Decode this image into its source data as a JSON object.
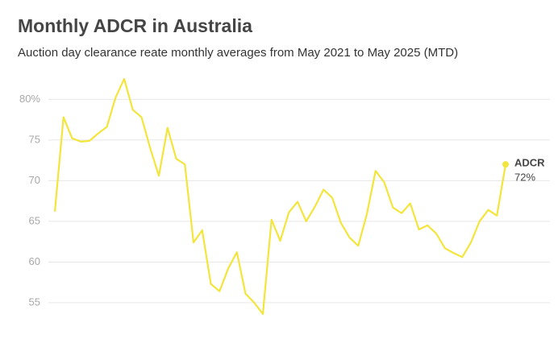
{
  "chart_data": {
    "type": "line",
    "title": "Monthly ADCR in Australia",
    "subtitle": "Auction day clearance reate monthly averages from May 2021 to May 2025 (MTD)",
    "categories": [
      null,
      null,
      null,
      null,
      null,
      null,
      null,
      null,
      null,
      null,
      null,
      null,
      null,
      null,
      null,
      null,
      null,
      null,
      null,
      null,
      null,
      null,
      null,
      null,
      null,
      null,
      null,
      null,
      null,
      null,
      null,
      null,
      null,
      null,
      null,
      null,
      null,
      null,
      null,
      null,
      null,
      null,
      null,
      null,
      null,
      null,
      null,
      null,
      null,
      null,
      null,
      null,
      null
    ],
    "series": [
      {
        "name": "ADCR",
        "color": "#f3e53b",
        "values": [
          66.2,
          77.8,
          75.2,
          74.8,
          74.9,
          75.8,
          76.6,
          80.2,
          82.5,
          78.7,
          77.8,
          74,
          70.6,
          76.5,
          72.7,
          72,
          62.4,
          63.9,
          57.3,
          56.4,
          59.2,
          61.2,
          56.1,
          55,
          53.6,
          65.2,
          62.6,
          66.1,
          67.4,
          65,
          66.8,
          68.9,
          67.9,
          64.8,
          63,
          62,
          65.9,
          71.2,
          69.8,
          66.7,
          66,
          67.2,
          64,
          64.5,
          63.5,
          61.7,
          61.1,
          60.6,
          62.4,
          65,
          66.4,
          65.7,
          72
        ],
        "value_labels": [
          null,
          null,
          null,
          null,
          null,
          null,
          null,
          null,
          null,
          null,
          null,
          null,
          null,
          null,
          null,
          null,
          null,
          null,
          null,
          null,
          null,
          null,
          null,
          null,
          null,
          null,
          null,
          null,
          null,
          null,
          null,
          null,
          null,
          null,
          null,
          null,
          null,
          null,
          null,
          null,
          null,
          null,
          null,
          null,
          null,
          null,
          null,
          null,
          null,
          null,
          null,
          null,
          "72%"
        ]
      }
    ],
    "ylim": [
      53.6,
      83.3
    ],
    "yticks": [
      55,
      60,
      65,
      70,
      75,
      {
        "value": 80,
        "label": "80%"
      }
    ],
    "grid": true
  }
}
